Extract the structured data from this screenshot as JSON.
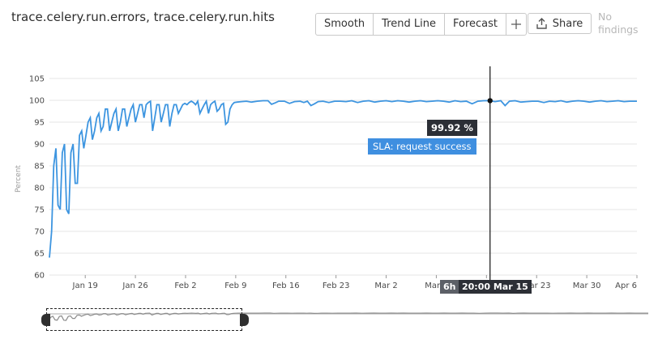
{
  "header": {
    "title": "trace.celery.run.errors, trace.celery.run.hits",
    "buttons": {
      "smooth": "Smooth",
      "trend_line": "Trend Line",
      "forecast": "Forecast",
      "add_icon": "plus-icon"
    },
    "share_label": "Share",
    "share_icon": "share-icon",
    "status_text": "No findings"
  },
  "tooltip": {
    "value": "99.92 %",
    "series_label": "SLA: request success",
    "granularity": "6h",
    "timestamp": "20:00 Mar 15",
    "label_color": "#3f8fe0"
  },
  "colors": {
    "line": "#3d95e0",
    "grid": "#e6e6e6",
    "navigator_line": "#8c8c8c"
  },
  "chart_data": {
    "type": "line",
    "title": "",
    "ylabel": "Percent",
    "xlabel": "",
    "ylim": [
      60,
      105
    ],
    "yticks": [
      60,
      65,
      70,
      75,
      80,
      85,
      90,
      95,
      100,
      105
    ],
    "xticks": [
      "Jan 19",
      "Jan 26",
      "Feb 2",
      "Feb 9",
      "Feb 16",
      "Feb 23",
      "Mar 2",
      "Mar 9",
      "Mar 16",
      "Mar 23",
      "Mar 30",
      "Apr 6"
    ],
    "x_range_days": [
      0,
      82
    ],
    "xtick_days": [
      5,
      12,
      19,
      26,
      33,
      40,
      47,
      54,
      61,
      68,
      75,
      82
    ],
    "series": [
      {
        "values_by_day": [
          [
            0.0,
            64
          ],
          [
            0.3,
            70
          ],
          [
            0.6,
            85
          ],
          [
            0.9,
            89
          ],
          [
            1.2,
            76
          ],
          [
            1.5,
            75
          ],
          [
            1.8,
            88
          ],
          [
            2.1,
            90
          ],
          [
            2.4,
            75
          ],
          [
            2.7,
            74
          ],
          [
            3.0,
            88
          ],
          [
            3.3,
            90
          ],
          [
            3.6,
            81
          ],
          [
            3.9,
            81
          ],
          [
            4.2,
            92
          ],
          [
            4.5,
            93
          ],
          [
            4.8,
            89
          ],
          [
            5.1,
            92
          ],
          [
            5.4,
            95
          ],
          [
            5.7,
            96
          ],
          [
            6.0,
            91
          ],
          [
            6.3,
            93
          ],
          [
            6.6,
            96
          ],
          [
            6.9,
            97
          ],
          [
            7.2,
            93
          ],
          [
            7.5,
            94
          ],
          [
            7.8,
            98
          ],
          [
            8.1,
            98
          ],
          [
            8.4,
            93
          ],
          [
            8.7,
            95
          ],
          [
            9.0,
            97
          ],
          [
            9.3,
            98
          ],
          [
            9.6,
            93
          ],
          [
            9.9,
            95
          ],
          [
            10.2,
            98
          ],
          [
            10.5,
            98
          ],
          [
            10.8,
            94
          ],
          [
            11.1,
            96
          ],
          [
            11.4,
            98
          ],
          [
            11.7,
            99
          ],
          [
            12.0,
            95
          ],
          [
            12.3,
            97
          ],
          [
            12.6,
            99
          ],
          [
            12.9,
            99
          ],
          [
            13.2,
            96
          ],
          [
            13.5,
            99
          ],
          [
            13.8,
            99.5
          ],
          [
            14.1,
            99.8
          ],
          [
            14.4,
            93
          ],
          [
            14.7,
            96
          ],
          [
            15.0,
            99
          ],
          [
            15.3,
            99
          ],
          [
            15.6,
            95
          ],
          [
            15.9,
            97
          ],
          [
            16.2,
            99
          ],
          [
            16.5,
            99
          ],
          [
            16.8,
            94
          ],
          [
            17.1,
            97
          ],
          [
            17.4,
            99
          ],
          [
            17.7,
            99
          ],
          [
            18.0,
            97
          ],
          [
            18.3,
            98
          ],
          [
            18.6,
            99
          ],
          [
            18.9,
            99.3
          ],
          [
            19.2,
            99
          ],
          [
            19.5,
            99.5
          ],
          [
            19.8,
            99.8
          ],
          [
            20.1,
            99.5
          ],
          [
            20.4,
            99
          ],
          [
            20.7,
            99.8
          ],
          [
            21.0,
            97
          ],
          [
            21.3,
            98
          ],
          [
            21.6,
            99
          ],
          [
            21.9,
            99.8
          ],
          [
            22.2,
            97
          ],
          [
            22.5,
            99
          ],
          [
            22.8,
            99.5
          ],
          [
            23.1,
            99.8
          ],
          [
            23.4,
            97.5
          ],
          [
            23.7,
            98
          ],
          [
            24.0,
            99
          ],
          [
            24.3,
            99.3
          ],
          [
            24.6,
            94.5
          ],
          [
            24.9,
            95
          ],
          [
            25.2,
            98
          ],
          [
            25.5,
            99
          ],
          [
            25.8,
            99.5
          ],
          [
            26.2,
            99.6
          ],
          [
            26.8,
            99.7
          ],
          [
            27.5,
            99.8
          ],
          [
            28.2,
            99.6
          ],
          [
            29.0,
            99.8
          ],
          [
            29.8,
            99.9
          ],
          [
            30.5,
            99.9
          ],
          [
            31.0,
            99.1
          ],
          [
            31.5,
            99.4
          ],
          [
            32.0,
            99.8
          ],
          [
            32.8,
            99.8
          ],
          [
            33.5,
            99.3
          ],
          [
            34.2,
            99.7
          ],
          [
            35.0,
            99.8
          ],
          [
            35.5,
            99.5
          ],
          [
            36.0,
            99.8
          ],
          [
            36.5,
            98.8
          ],
          [
            37.0,
            99.2
          ],
          [
            37.5,
            99.7
          ],
          [
            38.2,
            99.8
          ],
          [
            39.0,
            99.5
          ],
          [
            39.8,
            99.8
          ],
          [
            40.6,
            99.8
          ],
          [
            41.4,
            99.7
          ],
          [
            42.2,
            99.9
          ],
          [
            43.0,
            99.5
          ],
          [
            43.8,
            99.8
          ],
          [
            44.6,
            99.9
          ],
          [
            45.4,
            99.6
          ],
          [
            46.2,
            99.8
          ],
          [
            47.0,
            99.9
          ],
          [
            47.8,
            99.7
          ],
          [
            48.6,
            99.9
          ],
          [
            49.4,
            99.8
          ],
          [
            50.2,
            99.6
          ],
          [
            51.0,
            99.8
          ],
          [
            51.8,
            99.9
          ],
          [
            52.6,
            99.7
          ],
          [
            53.4,
            99.8
          ],
          [
            54.2,
            99.9
          ],
          [
            55.0,
            99.8
          ],
          [
            55.8,
            99.6
          ],
          [
            56.6,
            99.9
          ],
          [
            57.4,
            99.7
          ],
          [
            58.2,
            99.8
          ],
          [
            59.0,
            99.2
          ],
          [
            59.8,
            99.8
          ],
          [
            60.6,
            99.9
          ],
          [
            61.4,
            99.92
          ],
          [
            62.2,
            99.7
          ],
          [
            63.0,
            99.9
          ],
          [
            63.6,
            98.8
          ],
          [
            64.2,
            99.8
          ],
          [
            65.0,
            99.9
          ],
          [
            65.8,
            99.6
          ],
          [
            66.6,
            99.7
          ],
          [
            67.4,
            99.8
          ],
          [
            68.2,
            99.8
          ],
          [
            69.0,
            99.5
          ],
          [
            69.8,
            99.8
          ],
          [
            70.6,
            99.7
          ],
          [
            71.4,
            99.9
          ],
          [
            72.2,
            99.6
          ],
          [
            73.0,
            99.8
          ],
          [
            73.8,
            99.9
          ],
          [
            74.6,
            99.8
          ],
          [
            75.4,
            99.6
          ],
          [
            76.2,
            99.8
          ],
          [
            77.0,
            99.9
          ],
          [
            77.8,
            99.7
          ],
          [
            78.6,
            99.8
          ],
          [
            79.4,
            99.9
          ],
          [
            80.2,
            99.7
          ],
          [
            81.0,
            99.8
          ],
          [
            82.0,
            99.8
          ]
        ]
      }
    ],
    "cursor_day": 61.5,
    "cursor_value": 99.92,
    "grid": true,
    "legend": "none"
  },
  "navigator": {
    "selection_start_day": 0,
    "selection_end_day": 28
  }
}
